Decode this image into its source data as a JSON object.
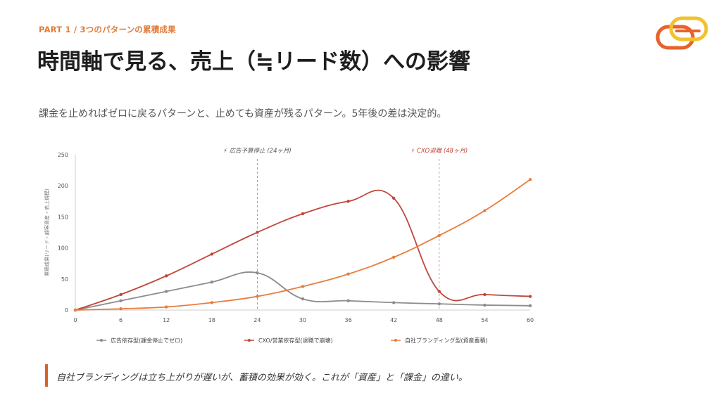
{
  "header": {
    "kicker": "PART 1  /  3つのパターンの累積成果",
    "title": "時間軸で見る、売上（≒リード数）への影響",
    "subtitle": "課金を止めればゼロに戻るパターンと、止めても資産が残るパターン。5年後の差は決定的。"
  },
  "logo": {
    "name": "brand-logo",
    "colors": [
      "#e8622c",
      "#f2c12e"
    ]
  },
  "footer": {
    "note": "自社ブランディングは立ち上がりが遅いが、蓄積の効果が効く。これが「資産」と「課金」の違い。"
  },
  "chart_data": {
    "type": "line",
    "ylabel": "累積成果(リード・顧客資産・売上規模)",
    "xlabel": "",
    "x": [
      0,
      6,
      12,
      18,
      24,
      30,
      36,
      42,
      48,
      54,
      60
    ],
    "ylim": [
      0,
      250
    ],
    "yticks": [
      0,
      50,
      100,
      150,
      200,
      250
    ],
    "grid": false,
    "legend": "bottom",
    "series": [
      {
        "name": "広告依存型(課金停止でゼロ)",
        "color": "#8c8c8c",
        "values": [
          0,
          15,
          30,
          45,
          60,
          18,
          15,
          12,
          10,
          8,
          7
        ]
      },
      {
        "name": "CXO/営業依存型(退職で崩壊)",
        "color": "#c0473a",
        "values": [
          0,
          25,
          55,
          90,
          125,
          155,
          175,
          180,
          30,
          25,
          22
        ]
      },
      {
        "name": "自社ブランディング型(資産蓄積)",
        "color": "#e87d3e",
        "values": [
          0,
          2,
          5,
          12,
          22,
          38,
          58,
          85,
          120,
          160,
          210
        ]
      }
    ],
    "annotations": [
      {
        "x": 24,
        "label": "⚡ 広告予算停止 (24ヶ月)",
        "color": "#555555"
      },
      {
        "x": 48,
        "label": "⚡ CXO退職 (48ヶ月)",
        "color": "#c0473a"
      }
    ]
  }
}
